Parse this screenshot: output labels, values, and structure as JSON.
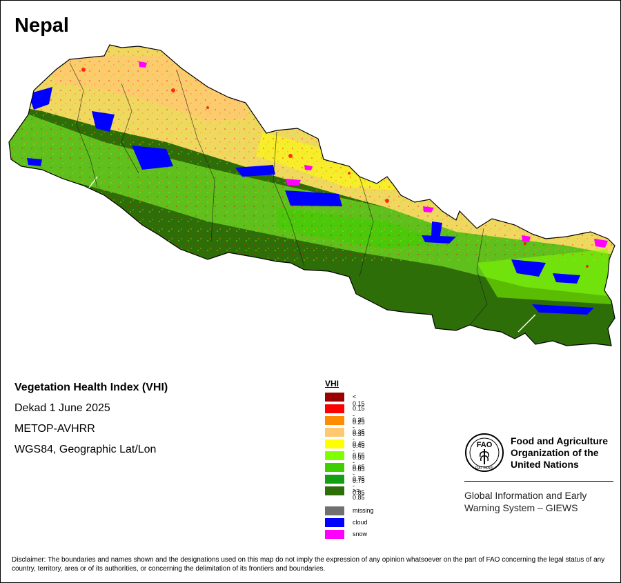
{
  "map": {
    "country": "Nepal",
    "info_lines": [
      "Vegetation Health Index (VHI)",
      "Dekad 1 June 2025",
      "METOP-AVHRR",
      "WGS84, Geographic Lat/Lon"
    ],
    "index_type": "Vegetation Health Index (VHI)",
    "dominant_region_colors": {
      "north_high_himalaya": "#f4d86a",
      "middle_hills": "#7fd93a",
      "south_terai": "#2e7d13"
    }
  },
  "legend": {
    "title": "VHI",
    "classes": [
      {
        "label": "< 0.15",
        "color": "#990000"
      },
      {
        "label": "0.15 - 0.25",
        "color": "#ff0000"
      },
      {
        "label": "0.25 - 0.35",
        "color": "#ff8c00"
      },
      {
        "label": "0.35 - 0.45",
        "color": "#ffc870"
      },
      {
        "label": "0.45 - 0.55",
        "color": "#ffff00"
      },
      {
        "label": "0.55 - 0.65",
        "color": "#7fff00"
      },
      {
        "label": "0.65 - 0.75",
        "color": "#3fcf00"
      },
      {
        "label": "0.75 - 0.85",
        "color": "#11a011"
      },
      {
        "label": ">= 0.85",
        "color": "#2e6e08"
      }
    ],
    "special": [
      {
        "label": "missing",
        "color": "#707070"
      },
      {
        "label": "cloud",
        "color": "#0000ff"
      },
      {
        "label": "snow",
        "color": "#ff00ff"
      }
    ]
  },
  "fao": {
    "emblem_icon": "fao-emblem-icon",
    "emblem_text": "FAO",
    "emblem_motto": "FIAT PANIS",
    "organization": "Food and Agriculture Organization of the United Nations",
    "system": "Global Information and Early Warning System – GIEWS"
  },
  "disclaimer": "Disclaimer: The boundaries and names shown and the designations used on this map do not imply the expression of any opinion whatsoever on the part of FAO concerning the legal status of any country, territory, area or of its authorities, or concerning the delimitation of its frontiers and boundaries."
}
